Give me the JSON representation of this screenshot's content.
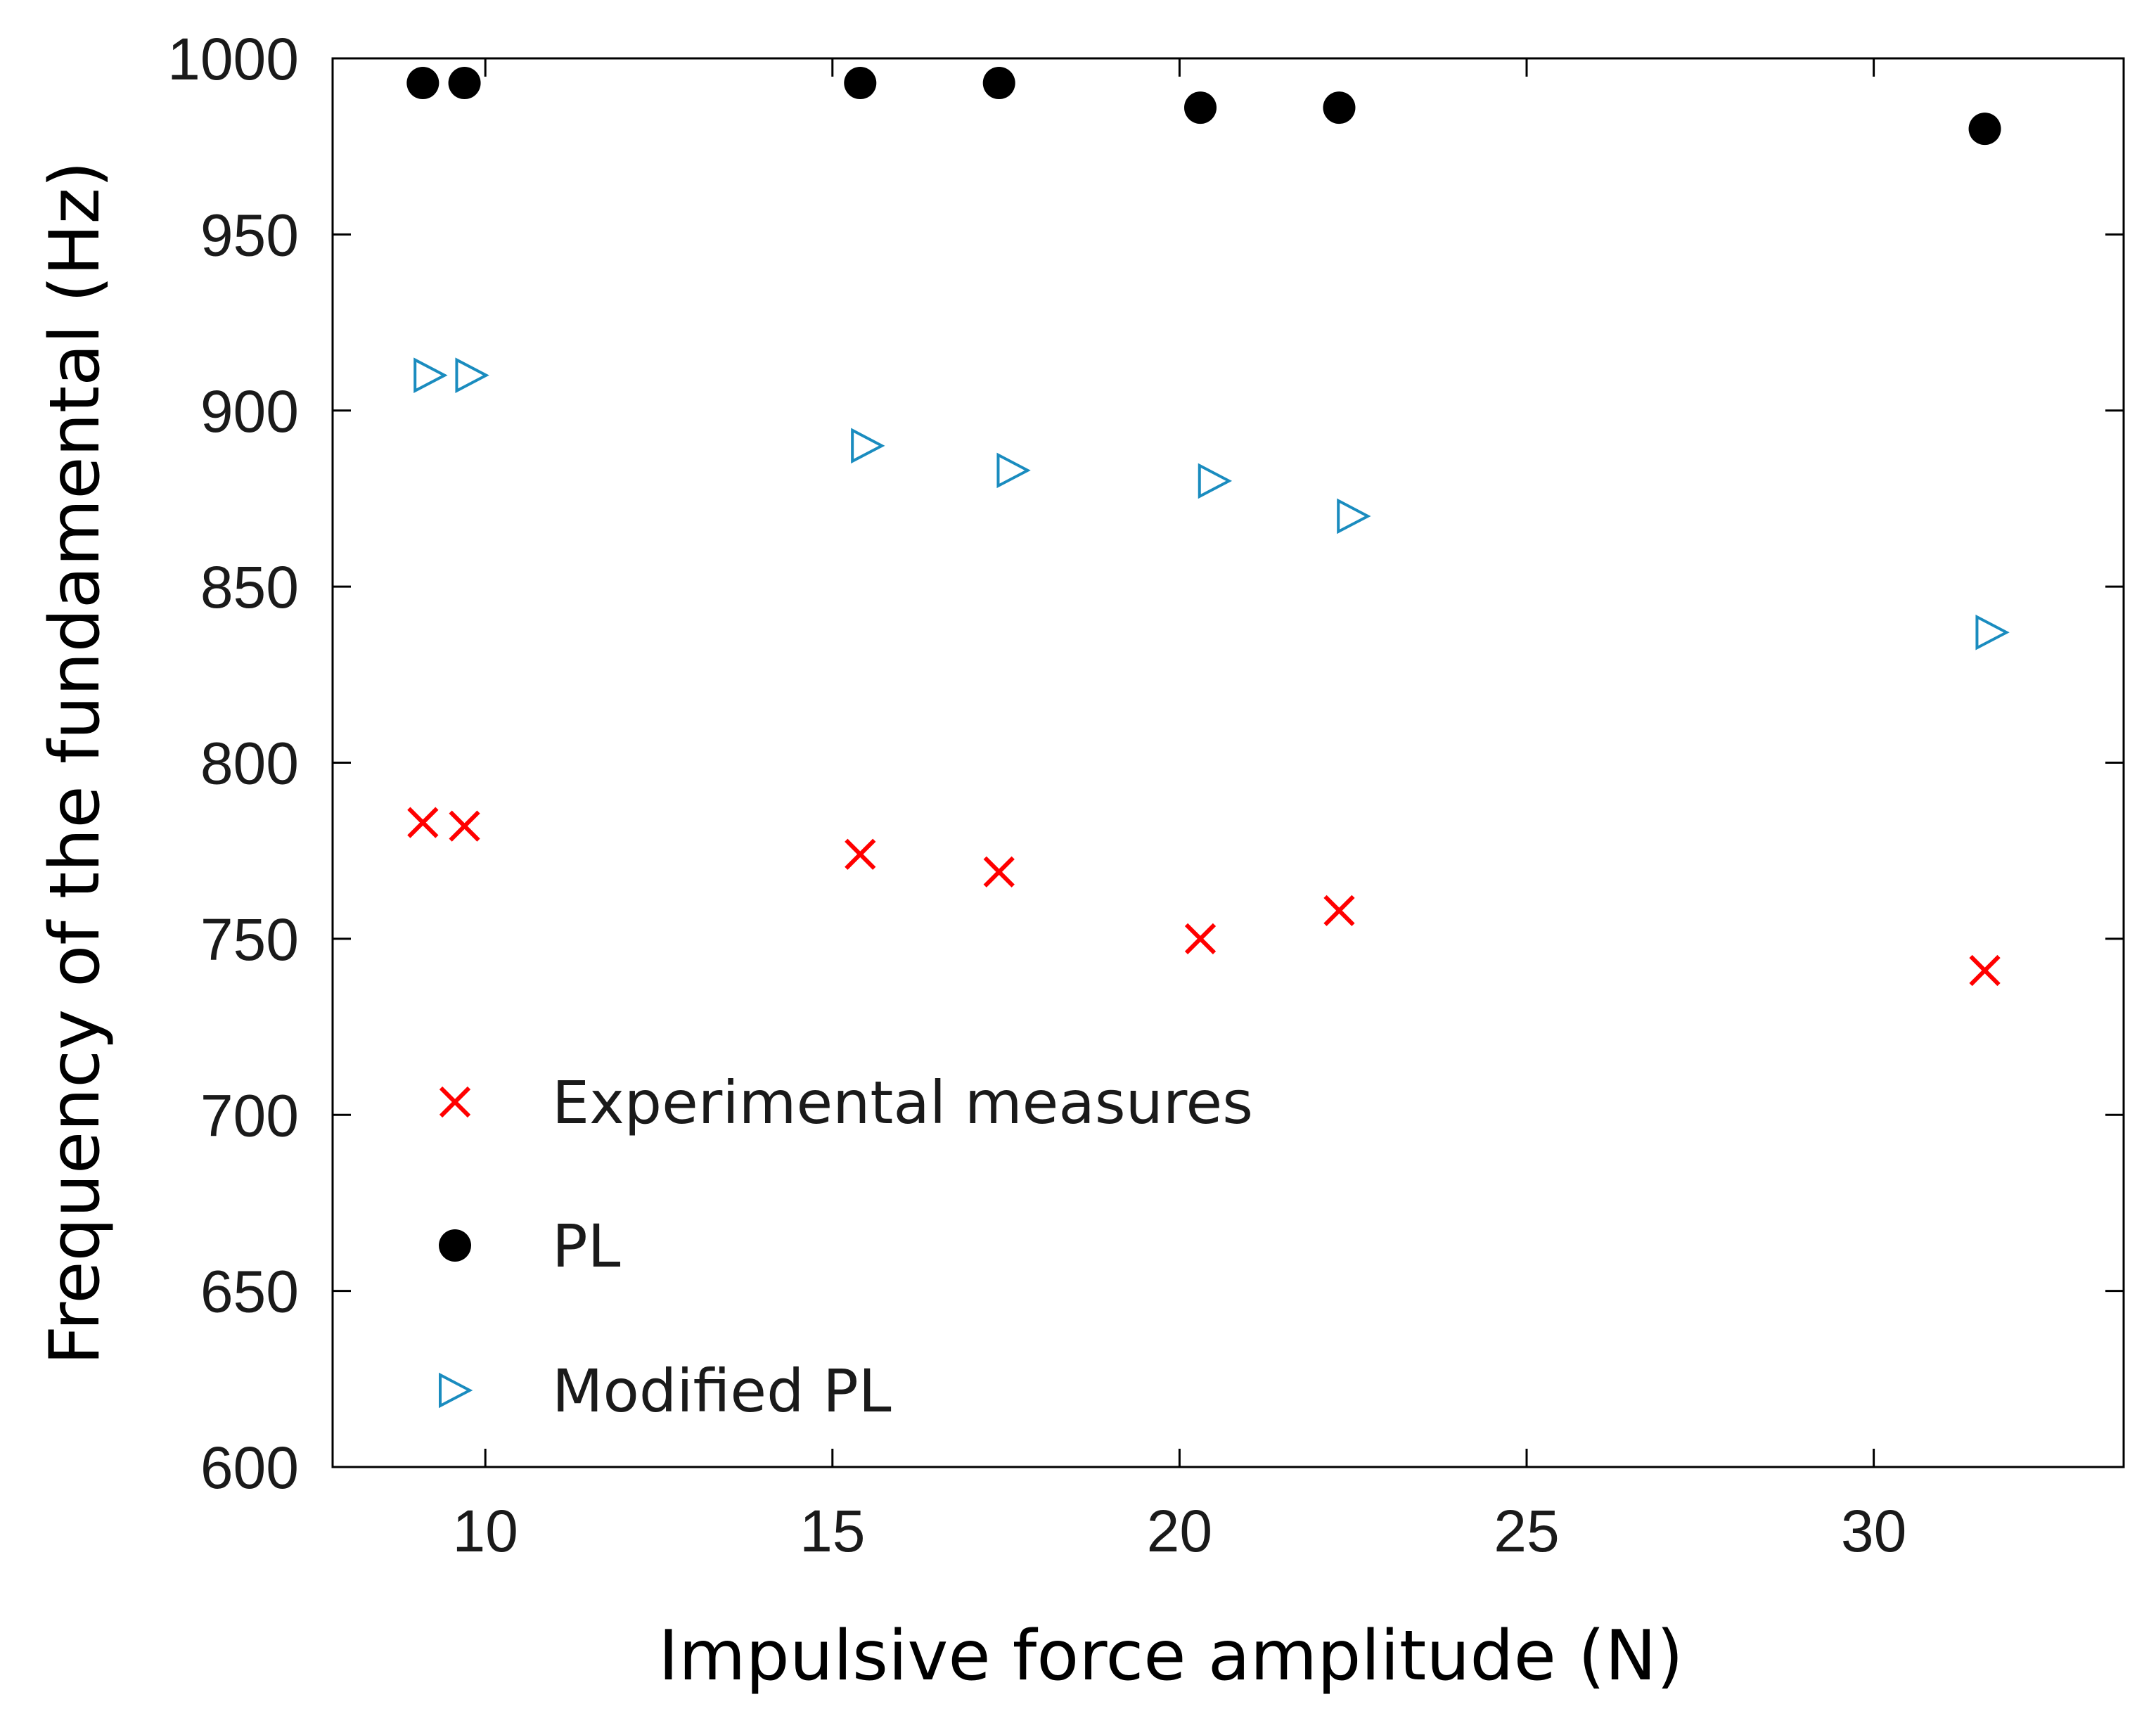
{
  "chart_data": {
    "type": "scatter",
    "title": "",
    "xlabel": "Impulsive force amplitude (N)",
    "ylabel": "Frequency of the fundamental (Hz)",
    "xlim": [
      7.8,
      33.6
    ],
    "ylim": [
      600,
      1000
    ],
    "xticks": [
      10,
      15,
      20,
      25,
      30
    ],
    "yticks": [
      600,
      650,
      700,
      750,
      800,
      850,
      900,
      950,
      1000
    ],
    "grid": false,
    "legend_position": "lower-left",
    "series": [
      {
        "name": "Experimental measures",
        "marker": "x",
        "color": "#ff0000",
        "x": [
          9.1,
          9.7,
          15.4,
          17.4,
          20.3,
          22.3,
          31.6
        ],
        "y": [
          783,
          782,
          774,
          769,
          750,
          758,
          741
        ]
      },
      {
        "name": "PL",
        "marker": "circle",
        "color": "#000000",
        "x": [
          9.1,
          9.7,
          15.4,
          17.4,
          20.3,
          22.3,
          31.6
        ],
        "y": [
          993,
          993,
          993,
          993,
          986,
          986,
          980
        ]
      },
      {
        "name": "Modified PL",
        "marker": "triangle-right",
        "color": "#1a8cbf",
        "x": [
          9.2,
          9.8,
          15.5,
          17.6,
          20.5,
          22.5,
          31.7
        ],
        "y": [
          910,
          910,
          890,
          883,
          880,
          870,
          837
        ]
      }
    ]
  }
}
